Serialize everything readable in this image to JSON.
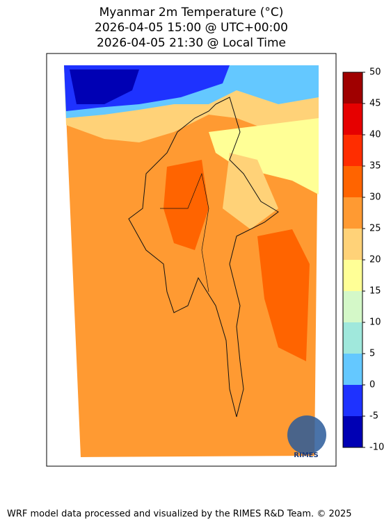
{
  "title": [
    "Myanmar 2m Temperature (°C)",
    "2026-04-05 15:00 @ UTC+00:00",
    "2026-04-05 21:30 @ Local Time"
  ],
  "colorbar": {
    "levels": [
      -10,
      -5,
      0,
      5,
      10,
      15,
      20,
      25,
      30,
      35,
      40,
      45,
      50
    ],
    "colors": [
      "#0000b4",
      "#1e32ff",
      "#64c8ff",
      "#a0e8dc",
      "#d4f8c8",
      "#ffff96",
      "#ffd278",
      "#ff9a32",
      "#ff6400",
      "#ff2d00",
      "#e60000",
      "#a00000"
    ],
    "ticks": [
      -10,
      -5,
      0,
      5,
      10,
      15,
      20,
      25,
      30,
      35,
      40,
      45,
      50
    ]
  },
  "logo": "RIMES",
  "footer": "WRF model data processed and visualized by the RIMES R&D Team. © 2025"
}
